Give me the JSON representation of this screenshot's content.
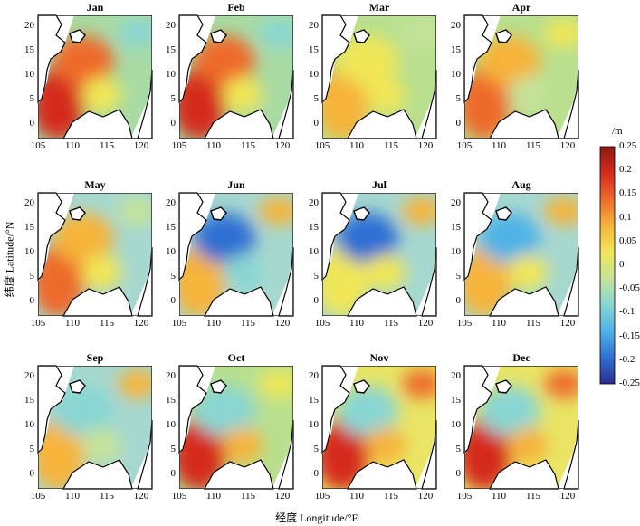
{
  "axes": {
    "xlabel": "经度 Longitude/°E",
    "ylabel": "纬度 Latitude/°N",
    "xticks": [
      "105",
      "110",
      "115",
      "120"
    ],
    "yticks": [
      "20",
      "15",
      "10",
      "5",
      "0"
    ]
  },
  "colorbar": {
    "unit": "/m",
    "ticks": [
      "0.25",
      "0.2",
      "0.15",
      "0.1",
      "0.05",
      "0",
      "-0.05",
      "-0.1",
      "-0.15",
      "-0.2",
      "-0.25"
    ],
    "range": [
      -0.25,
      0.25
    ],
    "colors": [
      "#2b2c8f",
      "#2f6fd3",
      "#4fb3e6",
      "#88d6d3",
      "#c5e39a",
      "#f0e657",
      "#f6b43b",
      "#ee6b2c",
      "#d42a1e",
      "#8e1a13"
    ]
  },
  "months": [
    {
      "name": "Jan",
      "bg": "#a8dba4",
      "blobs": [
        {
          "v": 0.22
        },
        {
          "v": 0.16
        },
        {
          "v": -0.09
        },
        {
          "v": 0.04
        }
      ]
    },
    {
      "name": "Feb",
      "bg": "#a8dba4",
      "blobs": [
        {
          "v": 0.18
        },
        {
          "v": 0.12
        },
        {
          "v": -0.08
        },
        {
          "v": 0.02
        }
      ]
    },
    {
      "name": "Mar",
      "bg": "#b8e08f",
      "blobs": [
        {
          "v": 0.06
        },
        {
          "v": 0.05
        },
        {
          "v": -0.04
        },
        {
          "v": 0.03
        }
      ]
    },
    {
      "name": "Apr",
      "bg": "#b8e08f",
      "blobs": [
        {
          "v": 0.12
        },
        {
          "v": 0.06
        },
        {
          "v": 0.02
        },
        {
          "v": -0.02
        }
      ]
    },
    {
      "name": "May",
      "bg": "#a6d8cf",
      "blobs": [
        {
          "v": 0.13
        },
        {
          "v": 0.07
        },
        {
          "v": -0.05
        },
        {
          "v": 0.02
        }
      ]
    },
    {
      "name": "Jun",
      "bg": "#a6d8cf",
      "blobs": [
        {
          "v": 0.09
        },
        {
          "v": -0.2
        },
        {
          "v": 0.06
        },
        {
          "v": -0.08
        }
      ]
    },
    {
      "name": "Jul",
      "bg": "#a6d8cf",
      "blobs": [
        {
          "v": 0.05
        },
        {
          "v": -0.22
        },
        {
          "v": 0.1
        },
        {
          "v": 0.03
        }
      ]
    },
    {
      "name": "Aug",
      "bg": "#a6d8cf",
      "blobs": [
        {
          "v": 0.09
        },
        {
          "v": -0.15
        },
        {
          "v": 0.11
        },
        {
          "v": 0.02
        }
      ]
    },
    {
      "name": "Sep",
      "bg": "#a6d8cf",
      "blobs": [
        {
          "v": 0.07
        },
        {
          "v": -0.1
        },
        {
          "v": 0.09
        },
        {
          "v": -0.03
        }
      ]
    },
    {
      "name": "Oct",
      "bg": "#b8e08f",
      "blobs": [
        {
          "v": 0.17
        },
        {
          "v": -0.07
        },
        {
          "v": 0.04
        },
        {
          "v": 0.08
        }
      ]
    },
    {
      "name": "Nov",
      "bg": "#e9e565",
      "blobs": [
        {
          "v": 0.21
        },
        {
          "v": -0.09
        },
        {
          "v": 0.12
        },
        {
          "v": 0.06
        }
      ]
    },
    {
      "name": "Dec",
      "bg": "#e9e565",
      "blobs": [
        {
          "v": 0.22
        },
        {
          "v": -0.08
        },
        {
          "v": 0.15
        },
        {
          "v": 0.08
        }
      ]
    }
  ]
}
